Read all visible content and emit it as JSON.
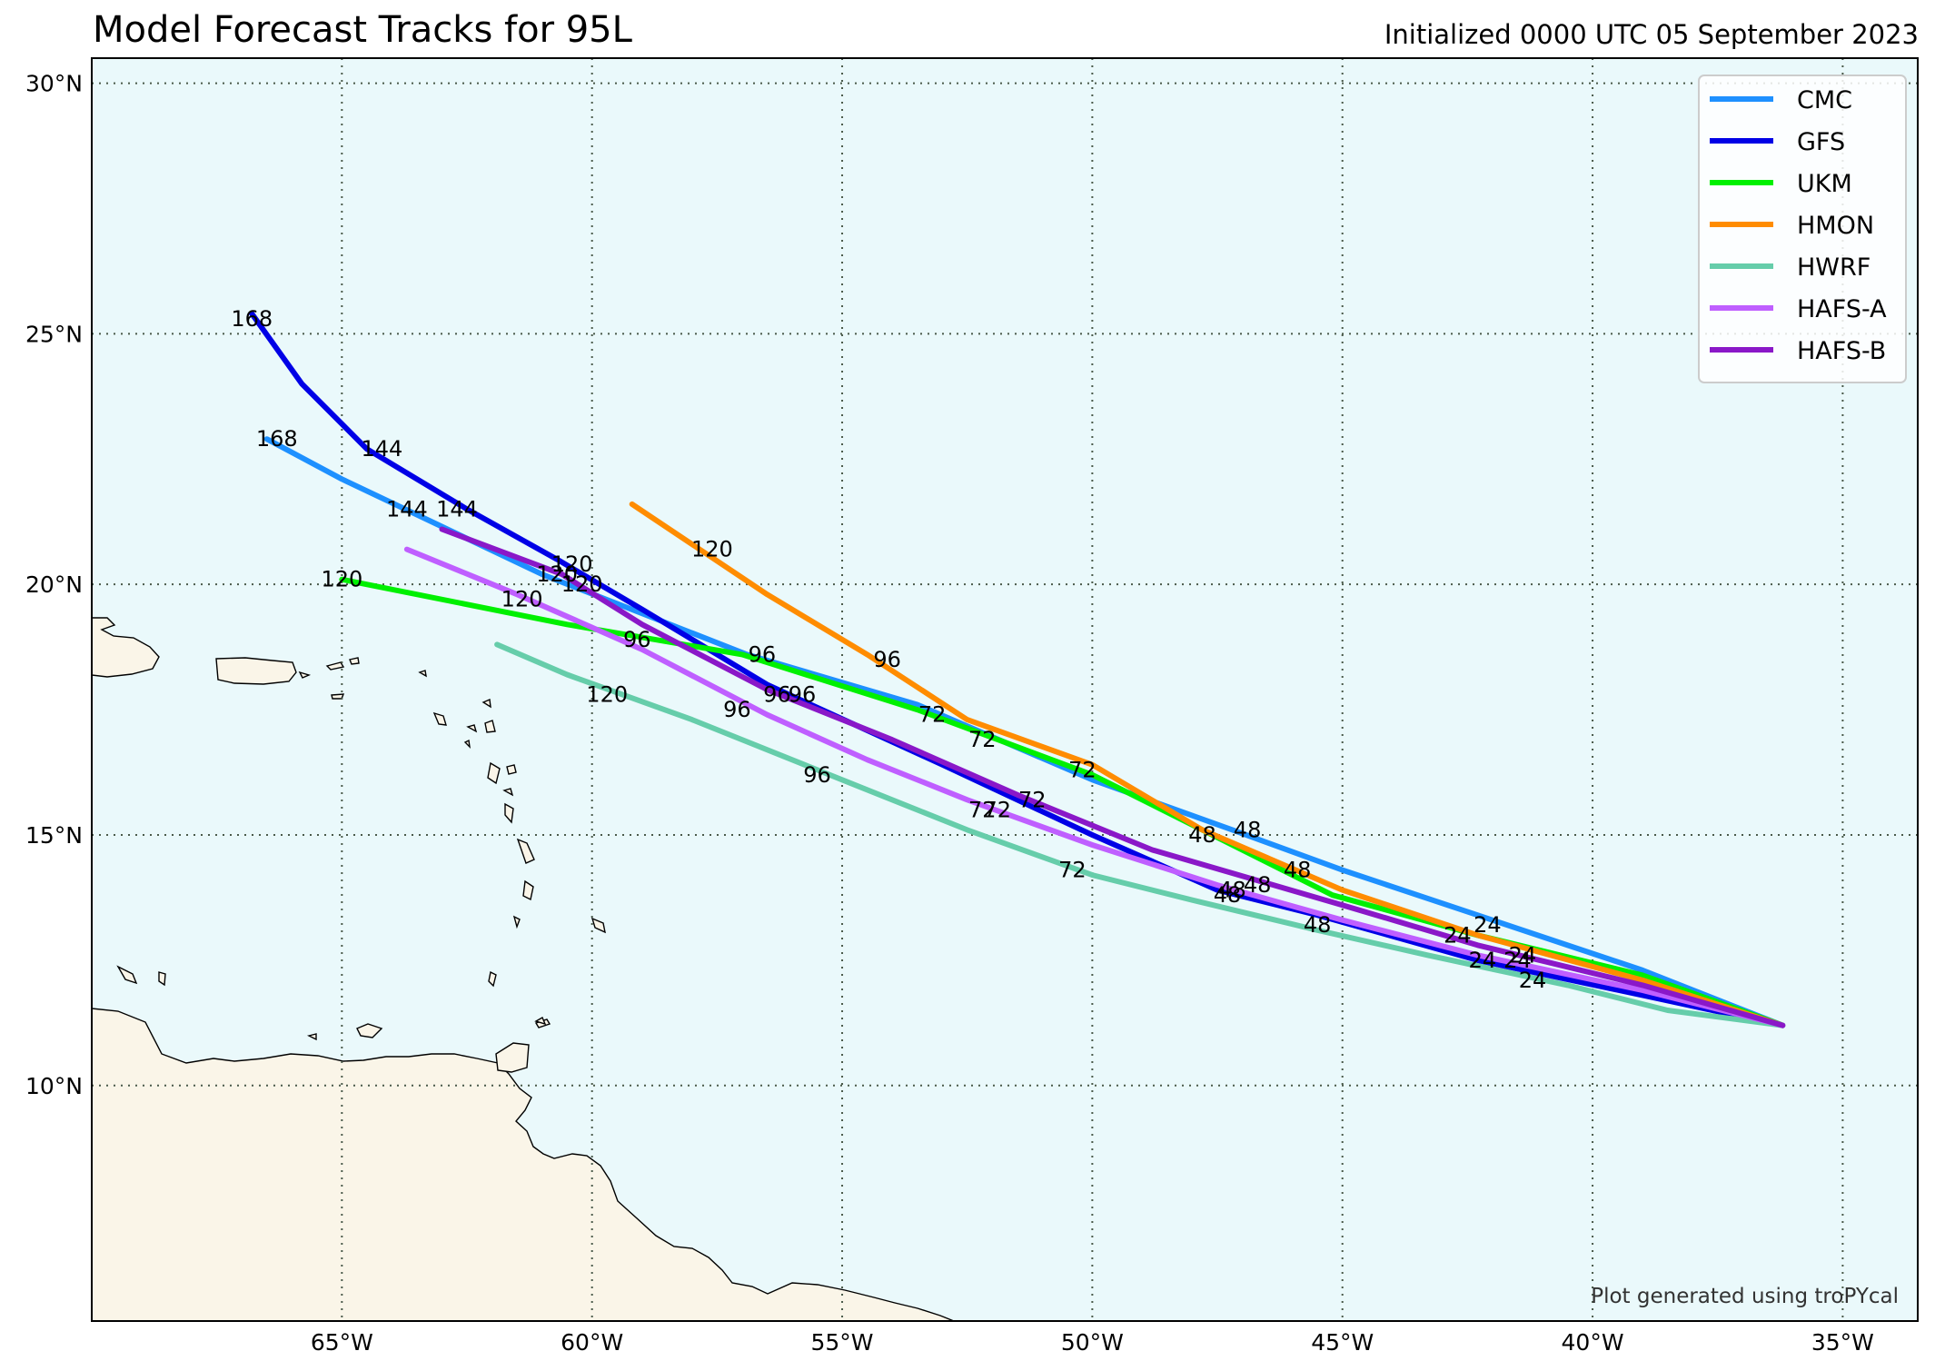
{
  "title": "Model Forecast Tracks for 95L",
  "subtitle": "Initialized 0000 UTC 05 September 2023",
  "credit": "Plot generated using troPYcal",
  "colors": {
    "ocean": "#eaf9fb",
    "land": "#faf5e8",
    "CMC": "#1e90ff",
    "GFS": "#0000e6",
    "UKM": "#00f000",
    "HMON": "#ff8c00",
    "HWRF": "#66cdaa",
    "HAFS-A": "#bf5fff",
    "HAFS-B": "#8a18c8"
  },
  "legend": {
    "placement": "top-right",
    "entries": [
      "CMC",
      "GFS",
      "UKM",
      "HMON",
      "HWRF",
      "HAFS-A",
      "HAFS-B"
    ]
  },
  "axes": {
    "lon_range": [
      -70,
      -33.5
    ],
    "lat_range": [
      5.3,
      30.5
    ],
    "x_ticks": [
      {
        "value": -65,
        "label": "65°W"
      },
      {
        "value": -60,
        "label": "60°W"
      },
      {
        "value": -55,
        "label": "55°W"
      },
      {
        "value": -50,
        "label": "50°W"
      },
      {
        "value": -45,
        "label": "45°W"
      },
      {
        "value": -40,
        "label": "40°W"
      },
      {
        "value": -35,
        "label": "35°W"
      }
    ],
    "y_ticks": [
      {
        "value": 10,
        "label": "10°N"
      },
      {
        "value": 15,
        "label": "15°N"
      },
      {
        "value": 20,
        "label": "20°N"
      },
      {
        "value": 25,
        "label": "25°N"
      },
      {
        "value": 30,
        "label": "30°N"
      }
    ],
    "gridlines": true
  },
  "chart_data": {
    "type": "line",
    "x_axis": "longitude",
    "y_axis": "latitude",
    "series": [
      {
        "name": "CMC",
        "points": [
          [
            -36.2,
            11.2
          ],
          [
            -39.0,
            12.3
          ],
          [
            -42.3,
            13.4
          ],
          [
            -45.0,
            14.3
          ],
          [
            -47.2,
            15.1
          ],
          [
            -50.0,
            16.1
          ],
          [
            -53.5,
            17.6
          ],
          [
            -56.9,
            18.6
          ],
          [
            -61.0,
            20.2
          ],
          [
            -63.1,
            21.2
          ],
          [
            -65.0,
            22.1
          ],
          [
            -66.5,
            22.9
          ]
        ],
        "labels": [
          {
            "text": "24",
            "lon": -42.1,
            "lat": 13.2
          },
          {
            "text": "48",
            "lon": -46.9,
            "lat": 15.1
          },
          {
            "text": "72",
            "lon": -52.2,
            "lat": 16.9
          },
          {
            "text": "96",
            "lon": -56.6,
            "lat": 18.6
          },
          {
            "text": "120",
            "lon": -60.4,
            "lat": 20.4
          },
          {
            "text": "144",
            "lon": -62.7,
            "lat": 21.5
          },
          {
            "text": "168",
            "lon": -66.3,
            "lat": 22.9
          }
        ]
      },
      {
        "name": "GFS",
        "points": [
          [
            -36.2,
            11.2
          ],
          [
            -39.0,
            11.8
          ],
          [
            -42.3,
            12.5
          ],
          [
            -45.5,
            13.4
          ],
          [
            -47.5,
            13.9
          ],
          [
            -50.0,
            15.0
          ],
          [
            -53.0,
            16.4
          ],
          [
            -56.5,
            18.0
          ],
          [
            -59.0,
            19.5
          ],
          [
            -60.7,
            20.5
          ],
          [
            -62.5,
            21.5
          ],
          [
            -64.5,
            22.7
          ],
          [
            -65.8,
            24.0
          ],
          [
            -66.8,
            25.4
          ]
        ],
        "labels": [
          {
            "text": "24",
            "lon": -42.2,
            "lat": 12.5
          },
          {
            "text": "48",
            "lon": -47.3,
            "lat": 13.8
          },
          {
            "text": "72",
            "lon": -52.2,
            "lat": 15.5
          },
          {
            "text": "96",
            "lon": -56.3,
            "lat": 17.8
          },
          {
            "text": "120",
            "lon": -60.7,
            "lat": 20.2
          },
          {
            "text": "144",
            "lon": -64.2,
            "lat": 22.7
          },
          {
            "text": "168",
            "lon": -66.8,
            "lat": 25.3
          }
        ]
      },
      {
        "name": "UKM",
        "points": [
          [
            -36.2,
            11.2
          ],
          [
            -39.0,
            12.2
          ],
          [
            -42.3,
            13.0
          ],
          [
            -45.2,
            13.8
          ],
          [
            -47.8,
            15.1
          ],
          [
            -50.0,
            16.2
          ],
          [
            -53.5,
            17.5
          ],
          [
            -57.0,
            18.6
          ],
          [
            -60.5,
            19.2
          ],
          [
            -65.0,
            20.1
          ]
        ],
        "labels": [
          {
            "text": "24",
            "lon": -41.4,
            "lat": 12.6
          },
          {
            "text": "48",
            "lon": -47.8,
            "lat": 15.0
          },
          {
            "text": "72",
            "lon": -53.2,
            "lat": 17.4
          },
          {
            "text": "96",
            "lon": -59.1,
            "lat": 18.9
          },
          {
            "text": "120",
            "lon": -65.0,
            "lat": 20.1
          }
        ]
      },
      {
        "name": "HMON",
        "points": [
          [
            -36.2,
            11.2
          ],
          [
            -39.0,
            12.1
          ],
          [
            -42.3,
            13.0
          ],
          [
            -45.0,
            13.9
          ],
          [
            -47.8,
            15.1
          ],
          [
            -50.0,
            16.4
          ],
          [
            -52.5,
            17.3
          ],
          [
            -54.5,
            18.6
          ],
          [
            -56.5,
            19.8
          ],
          [
            -59.2,
            21.6
          ]
        ],
        "labels": [
          {
            "text": "24",
            "lon": -42.7,
            "lat": 13.0
          },
          {
            "text": "48",
            "lon": -45.9,
            "lat": 14.3
          },
          {
            "text": "72",
            "lon": -50.2,
            "lat": 16.3
          },
          {
            "text": "96",
            "lon": -54.1,
            "lat": 18.5
          },
          {
            "text": "120",
            "lon": -57.6,
            "lat": 20.7
          }
        ]
      },
      {
        "name": "HWRF",
        "points": [
          [
            -36.2,
            11.2
          ],
          [
            -38.5,
            11.5
          ],
          [
            -40.5,
            12.0
          ],
          [
            -43.3,
            12.6
          ],
          [
            -45.5,
            13.1
          ],
          [
            -48.0,
            13.7
          ],
          [
            -50.0,
            14.2
          ],
          [
            -52.5,
            15.1
          ],
          [
            -55.0,
            16.1
          ],
          [
            -58.0,
            17.3
          ],
          [
            -60.5,
            18.2
          ],
          [
            -61.9,
            18.8
          ]
        ],
        "labels": [
          {
            "text": "24",
            "lon": -41.2,
            "lat": 12.1
          },
          {
            "text": "48",
            "lon": -45.5,
            "lat": 13.2
          },
          {
            "text": "72",
            "lon": -50.4,
            "lat": 14.3
          },
          {
            "text": "96",
            "lon": -55.5,
            "lat": 16.2
          },
          {
            "text": "120",
            "lon": -59.7,
            "lat": 17.8
          }
        ]
      },
      {
        "name": "HAFS-A",
        "points": [
          [
            -36.2,
            11.2
          ],
          [
            -39.0,
            11.9
          ],
          [
            -42.3,
            12.6
          ],
          [
            -45.0,
            13.3
          ],
          [
            -47.5,
            14.0
          ],
          [
            -50.0,
            14.8
          ],
          [
            -52.5,
            15.7
          ],
          [
            -54.5,
            16.5
          ],
          [
            -56.5,
            17.4
          ],
          [
            -59.0,
            18.7
          ],
          [
            -61.5,
            19.8
          ],
          [
            -63.7,
            20.7
          ]
        ],
        "labels": [
          {
            "text": "24",
            "lon": -42.2,
            "lat": 12.5
          },
          {
            "text": "48",
            "lon": -47.2,
            "lat": 13.9
          },
          {
            "text": "72",
            "lon": -51.9,
            "lat": 15.5
          },
          {
            "text": "96",
            "lon": -57.1,
            "lat": 17.5
          },
          {
            "text": "120",
            "lon": -61.4,
            "lat": 19.7
          }
        ]
      },
      {
        "name": "HAFS-B",
        "points": [
          [
            -36.2,
            11.2
          ],
          [
            -39.0,
            12.0
          ],
          [
            -42.3,
            12.8
          ],
          [
            -45.0,
            13.6
          ],
          [
            -48.8,
            14.7
          ],
          [
            -51.5,
            15.8
          ],
          [
            -54.0,
            16.9
          ],
          [
            -56.5,
            17.9
          ],
          [
            -59.0,
            19.2
          ],
          [
            -60.6,
            20.2
          ],
          [
            -63.0,
            21.1
          ]
        ],
        "labels": [
          {
            "text": "24",
            "lon": -41.5,
            "lat": 12.5
          },
          {
            "text": "48",
            "lon": -46.7,
            "lat": 14.0
          },
          {
            "text": "72",
            "lon": -51.2,
            "lat": 15.7
          },
          {
            "text": "96",
            "lon": -55.8,
            "lat": 17.8
          },
          {
            "text": "120",
            "lon": -60.2,
            "lat": 20.0
          },
          {
            "text": "144",
            "lon": -63.7,
            "lat": 21.5
          }
        ]
      }
    ]
  }
}
